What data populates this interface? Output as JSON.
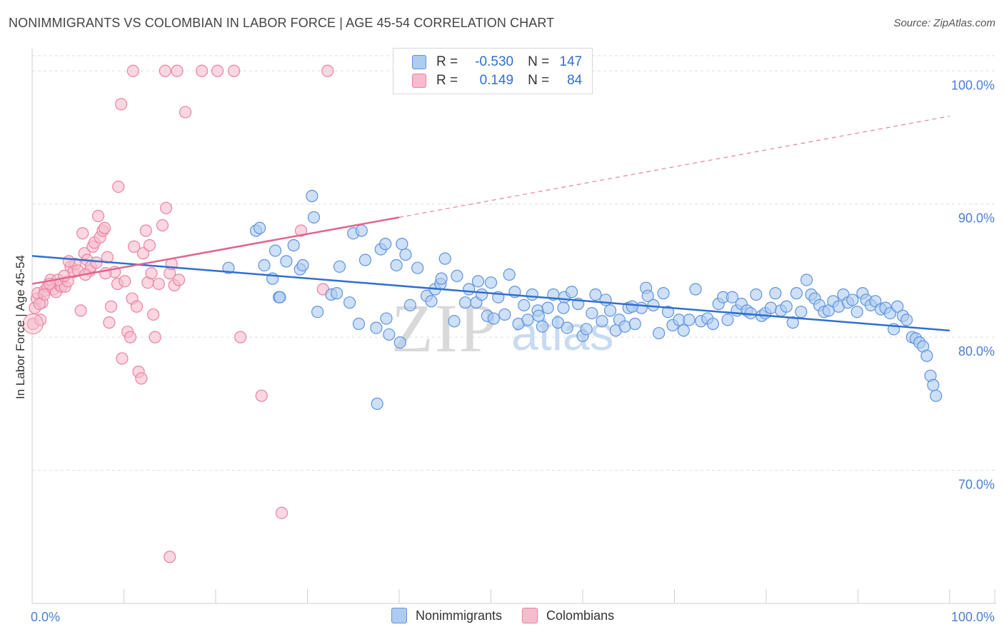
{
  "header": {
    "title": "NONIMMIGRANTS VS COLOMBIAN IN LABOR FORCE | AGE 45-54 CORRELATION CHART",
    "source": "Source: ZipAtlas.com"
  },
  "legend": {
    "rows": [
      {
        "r_label": "R =",
        "r_value": "-0.530",
        "n_label": "N =",
        "n_value": "147"
      },
      {
        "r_label": "R =",
        "r_value": "0.149",
        "n_label": "N =",
        "n_value": "84"
      }
    ],
    "series_labels": [
      "Nonimmigrants",
      "Colombians"
    ]
  },
  "colors": {
    "blue_fill": "#aecbf2",
    "blue_stroke": "#5f93dc",
    "blue_line": "#2f6fd1",
    "pink_fill": "#f6bccd",
    "pink_stroke": "#ea82a3",
    "pink_line": "#e2658d",
    "grid": "#dddddd",
    "tick_text": "#4a7fd4"
  },
  "watermark": {
    "zip": "ZIP",
    "atlas": "atlas"
  },
  "chart_data": {
    "type": "scatter",
    "xlabel": "",
    "ylabel": "In Labor Force | Age 45-54",
    "xlim": [
      0,
      100
    ],
    "ylim": [
      60,
      102
    ],
    "x_tick_labels": [
      "0.0%",
      "100.0%"
    ],
    "y_ticks": [
      70,
      80,
      90,
      100
    ],
    "y_tick_labels": [
      "70.0%",
      "80.0%",
      "90.0%",
      "100.0%"
    ],
    "grid": true,
    "legend_position": "top-center",
    "series": [
      {
        "name": "Nonimmigrants",
        "color": "#5f93dc",
        "r": -0.53,
        "n": 147,
        "trend": {
          "x": [
            0,
            100
          ],
          "y": [
            86.1,
            80.5
          ]
        },
        "points": [
          [
            21.4,
            85.2
          ],
          [
            24.4,
            88.0
          ],
          [
            24.8,
            88.2
          ],
          [
            25.3,
            85.4
          ],
          [
            26.2,
            84.4
          ],
          [
            26.5,
            86.5
          ],
          [
            26.9,
            83.0
          ],
          [
            27.7,
            85.7
          ],
          [
            28.5,
            86.9
          ],
          [
            29.2,
            85.1
          ],
          [
            29.5,
            85.4
          ],
          [
            30.5,
            90.6
          ],
          [
            30.7,
            89.0
          ],
          [
            31.1,
            81.9
          ],
          [
            32.6,
            83.2
          ],
          [
            33.5,
            85.3
          ],
          [
            34.6,
            82.6
          ],
          [
            35.0,
            87.8
          ],
          [
            35.6,
            81.0
          ],
          [
            35.9,
            88.0
          ],
          [
            36.3,
            85.8
          ],
          [
            37.5,
            80.7
          ],
          [
            38.0,
            86.6
          ],
          [
            38.5,
            87.0
          ],
          [
            38.6,
            81.4
          ],
          [
            38.9,
            80.2
          ],
          [
            39.7,
            85.4
          ],
          [
            40.3,
            87.0
          ],
          [
            40.7,
            86.2
          ],
          [
            40.1,
            79.6
          ],
          [
            41.2,
            82.4
          ],
          [
            42.0,
            85.2
          ],
          [
            43.0,
            83.1
          ],
          [
            43.5,
            82.7
          ],
          [
            43.9,
            83.6
          ],
          [
            44.5,
            84.0
          ],
          [
            45.0,
            85.9
          ],
          [
            46.0,
            81.2
          ],
          [
            46.3,
            84.6
          ],
          [
            47.2,
            82.6
          ],
          [
            47.6,
            83.6
          ],
          [
            48.4,
            82.6
          ],
          [
            49.0,
            83.2
          ],
          [
            49.6,
            81.6
          ],
          [
            50.0,
            84.1
          ],
          [
            50.8,
            83.0
          ],
          [
            51.5,
            81.7
          ],
          [
            52.0,
            84.7
          ],
          [
            52.6,
            83.4
          ],
          [
            53.0,
            81.0
          ],
          [
            53.6,
            82.4
          ],
          [
            54.0,
            81.3
          ],
          [
            54.5,
            83.2
          ],
          [
            55.1,
            82.0
          ],
          [
            55.6,
            80.8
          ],
          [
            56.2,
            82.2
          ],
          [
            56.8,
            83.2
          ],
          [
            57.3,
            81.1
          ],
          [
            58.0,
            83.0
          ],
          [
            58.3,
            80.7
          ],
          [
            58.8,
            83.4
          ],
          [
            59.5,
            82.5
          ],
          [
            60.0,
            80.1
          ],
          [
            60.4,
            80.6
          ],
          [
            61.0,
            81.8
          ],
          [
            61.4,
            83.2
          ],
          [
            62.1,
            81.2
          ],
          [
            62.5,
            82.8
          ],
          [
            63.0,
            82.0
          ],
          [
            63.6,
            80.5
          ],
          [
            64.0,
            81.3
          ],
          [
            64.6,
            80.8
          ],
          [
            65.0,
            82.2
          ],
          [
            65.7,
            81.0
          ],
          [
            66.4,
            82.2
          ],
          [
            66.9,
            83.7
          ],
          [
            67.1,
            83.1
          ],
          [
            67.7,
            82.4
          ],
          [
            68.3,
            80.3
          ],
          [
            68.8,
            83.3
          ],
          [
            69.3,
            81.9
          ],
          [
            69.8,
            80.9
          ],
          [
            70.5,
            81.3
          ],
          [
            71.0,
            80.5
          ],
          [
            71.6,
            81.3
          ],
          [
            72.3,
            83.6
          ],
          [
            72.9,
            81.2
          ],
          [
            73.6,
            81.4
          ],
          [
            74.2,
            81.0
          ],
          [
            74.8,
            82.5
          ],
          [
            75.3,
            83.0
          ],
          [
            75.8,
            81.3
          ],
          [
            76.3,
            83.0
          ],
          [
            76.8,
            82.0
          ],
          [
            77.3,
            82.5
          ],
          [
            77.9,
            82.0
          ],
          [
            78.3,
            81.8
          ],
          [
            78.9,
            83.2
          ],
          [
            79.5,
            81.6
          ],
          [
            79.9,
            81.8
          ],
          [
            80.5,
            82.2
          ],
          [
            81.0,
            83.3
          ],
          [
            81.6,
            82.0
          ],
          [
            82.2,
            82.3
          ],
          [
            82.9,
            81.1
          ],
          [
            83.3,
            83.3
          ],
          [
            83.8,
            81.9
          ],
          [
            84.4,
            84.3
          ],
          [
            84.9,
            83.2
          ],
          [
            85.3,
            82.9
          ],
          [
            85.8,
            82.4
          ],
          [
            86.3,
            81.9
          ],
          [
            86.8,
            82.0
          ],
          [
            87.3,
            82.7
          ],
          [
            87.9,
            82.3
          ],
          [
            88.4,
            83.2
          ],
          [
            88.9,
            82.6
          ],
          [
            89.4,
            82.8
          ],
          [
            89.9,
            81.9
          ],
          [
            90.5,
            83.3
          ],
          [
            90.9,
            82.8
          ],
          [
            91.4,
            82.4
          ],
          [
            91.9,
            82.7
          ],
          [
            92.5,
            82.1
          ],
          [
            93.0,
            82.2
          ],
          [
            93.5,
            81.8
          ],
          [
            93.9,
            80.6
          ],
          [
            94.3,
            82.3
          ],
          [
            94.9,
            81.6
          ],
          [
            95.3,
            81.3
          ],
          [
            95.9,
            80.0
          ],
          [
            96.3,
            79.9
          ],
          [
            96.7,
            79.6
          ],
          [
            97.1,
            79.3
          ],
          [
            97.5,
            78.6
          ],
          [
            97.9,
            77.1
          ],
          [
            98.2,
            76.4
          ],
          [
            98.5,
            75.6
          ],
          [
            37.6,
            75.0
          ],
          [
            27.0,
            83.0
          ],
          [
            50.3,
            81.4
          ],
          [
            57.9,
            82.2
          ],
          [
            65.4,
            82.3
          ],
          [
            33.2,
            83.3
          ],
          [
            48.6,
            84.2
          ],
          [
            44.6,
            84.4
          ],
          [
            55.2,
            81.6
          ]
        ]
      },
      {
        "name": "Colombians",
        "color": "#ea82a3",
        "r": 0.149,
        "n": 84,
        "trend": {
          "x": [
            0,
            40
          ],
          "y": [
            84.0,
            89.0
          ]
        },
        "trend_dashed": {
          "x": [
            40,
            100
          ],
          "y": [
            89.0,
            96.6
          ]
        },
        "points": [
          [
            0.1,
            81.0
          ],
          [
            0.3,
            82.2
          ],
          [
            0.5,
            82.9
          ],
          [
            0.6,
            83.3
          ],
          [
            0.9,
            81.3
          ],
          [
            1.1,
            82.6
          ],
          [
            1.4,
            83.5
          ],
          [
            1.7,
            83.8
          ],
          [
            2.0,
            84.3
          ],
          [
            2.3,
            83.6
          ],
          [
            2.6,
            83.4
          ],
          [
            3.0,
            83.9
          ],
          [
            3.2,
            83.8
          ],
          [
            3.6,
            83.8
          ],
          [
            3.9,
            84.2
          ],
          [
            4.2,
            85.3
          ],
          [
            4.5,
            84.9
          ],
          [
            4.7,
            85.5
          ],
          [
            5.0,
            85.0
          ],
          [
            5.3,
            82.0
          ],
          [
            5.5,
            87.8
          ],
          [
            5.7,
            86.3
          ],
          [
            6.0,
            85.8
          ],
          [
            6.3,
            85.0
          ],
          [
            6.6,
            86.8
          ],
          [
            6.8,
            87.1
          ],
          [
            7.2,
            89.1
          ],
          [
            7.4,
            87.5
          ],
          [
            7.7,
            88.0
          ],
          [
            7.9,
            88.2
          ],
          [
            8.2,
            86.0
          ],
          [
            8.4,
            81.1
          ],
          [
            8.6,
            82.3
          ],
          [
            9.0,
            84.9
          ],
          [
            9.3,
            84.0
          ],
          [
            9.4,
            91.3
          ],
          [
            9.7,
            97.5
          ],
          [
            9.8,
            78.4
          ],
          [
            10.1,
            84.2
          ],
          [
            10.4,
            80.4
          ],
          [
            10.7,
            80.0
          ],
          [
            10.9,
            82.9
          ],
          [
            11.1,
            86.8
          ],
          [
            11.4,
            82.3
          ],
          [
            11.6,
            77.4
          ],
          [
            11.9,
            76.9
          ],
          [
            12.1,
            86.3
          ],
          [
            12.4,
            88.0
          ],
          [
            12.6,
            84.1
          ],
          [
            12.8,
            86.9
          ],
          [
            13.0,
            84.8
          ],
          [
            13.2,
            81.7
          ],
          [
            13.4,
            80.0
          ],
          [
            13.8,
            84.0
          ],
          [
            14.2,
            88.4
          ],
          [
            14.6,
            89.7
          ],
          [
            15.0,
            84.8
          ],
          [
            15.2,
            85.5
          ],
          [
            15.5,
            83.9
          ],
          [
            16.0,
            84.3
          ],
          [
            16.7,
            96.9
          ],
          [
            18.5,
            100.0
          ],
          [
            20.2,
            100.0
          ],
          [
            22.0,
            100.0
          ],
          [
            11.0,
            100.0
          ],
          [
            14.5,
            100.0
          ],
          [
            15.8,
            100.0
          ],
          [
            32.2,
            100.0
          ],
          [
            22.7,
            80.0
          ],
          [
            25.0,
            75.6
          ],
          [
            27.2,
            66.8
          ],
          [
            15.0,
            63.5
          ],
          [
            31.7,
            83.6
          ],
          [
            29.3,
            88.0
          ],
          [
            2.8,
            84.3
          ],
          [
            1.9,
            84.0
          ],
          [
            6.4,
            85.3
          ],
          [
            4.0,
            85.7
          ],
          [
            3.5,
            84.6
          ],
          [
            7.0,
            85.6
          ],
          [
            8.0,
            84.8
          ],
          [
            1.3,
            83.2
          ],
          [
            0.8,
            82.5
          ],
          [
            5.8,
            84.7
          ]
        ]
      }
    ]
  }
}
